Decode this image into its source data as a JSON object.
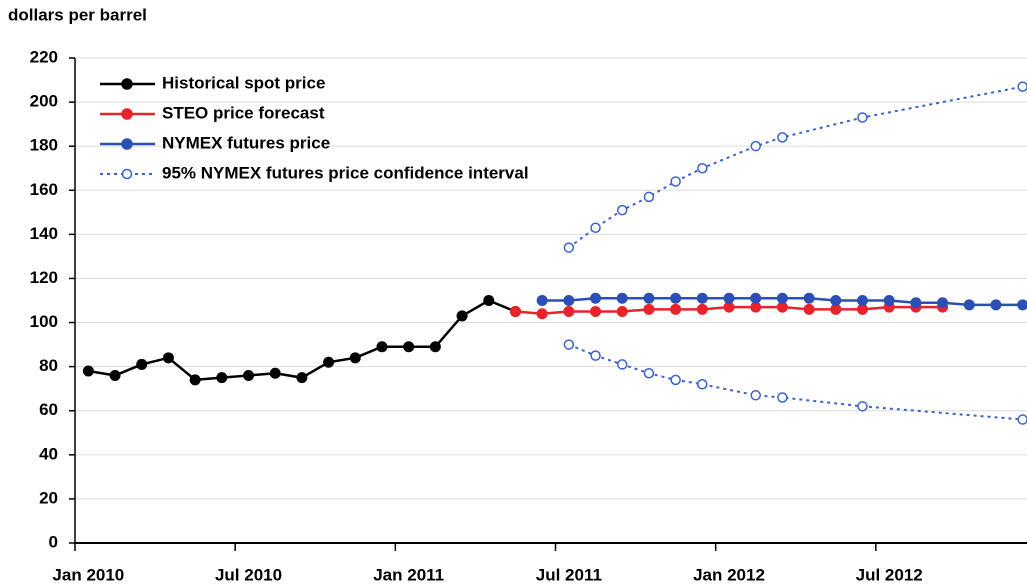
{
  "chart_data": {
    "type": "line",
    "ylabel": "dollars per barrel",
    "ylim": [
      0,
      220
    ],
    "yticks": [
      0,
      20,
      40,
      60,
      80,
      100,
      120,
      140,
      160,
      180,
      200,
      220
    ],
    "grid": true,
    "xlim": [
      "2010-01",
      "2013-01"
    ],
    "xticks": [
      {
        "value": "2010-01",
        "label": "Jan 2010"
      },
      {
        "value": "2010-07",
        "label": "Jul 2010"
      },
      {
        "value": "2011-01",
        "label": "Jan 2011"
      },
      {
        "value": "2011-07",
        "label": "Jul 2011"
      },
      {
        "value": "2012-01",
        "label": "Jan 2012"
      },
      {
        "value": "2012-07",
        "label": "Jul 2012"
      }
    ],
    "legend": "upper left",
    "series": [
      {
        "name": "Historical spot price",
        "color": "#000000",
        "x": [
          "2010-01",
          "2010-02",
          "2010-03",
          "2010-04",
          "2010-05",
          "2010-06",
          "2010-07",
          "2010-08",
          "2010-09",
          "2010-10",
          "2010-11",
          "2010-12",
          "2011-01",
          "2011-02",
          "2011-03",
          "2011-04",
          "2011-05"
        ],
        "values": [
          78,
          76,
          81,
          84,
          74,
          75,
          76,
          77,
          75,
          82,
          84,
          89,
          89,
          89,
          103,
          110,
          105
        ]
      },
      {
        "name": "STEO price forecast",
        "color": "#e8232a",
        "x": [
          "2011-05",
          "2011-06",
          "2011-07",
          "2011-08",
          "2011-09",
          "2011-10",
          "2011-11",
          "2011-12",
          "2012-01",
          "2012-02",
          "2012-03",
          "2012-04",
          "2012-05",
          "2012-06",
          "2012-07",
          "2012-08",
          "2012-09"
        ],
        "values": [
          105,
          104,
          105,
          105,
          105,
          106,
          106,
          106,
          107,
          107,
          107,
          106,
          106,
          106,
          107,
          107,
          107
        ]
      },
      {
        "name": "NYMEX futures price",
        "color": "#2a4fb5",
        "x": [
          "2011-06",
          "2011-07",
          "2011-08",
          "2011-09",
          "2011-10",
          "2011-11",
          "2011-12",
          "2012-01",
          "2012-02",
          "2012-03",
          "2012-04",
          "2012-05",
          "2012-06",
          "2012-07",
          "2012-08",
          "2012-09",
          "2012-10",
          "2012-11",
          "2012-12"
        ],
        "values": [
          110,
          110,
          111,
          111,
          111,
          111,
          111,
          111,
          111,
          111,
          111,
          110,
          110,
          110,
          109,
          109,
          108,
          108,
          108
        ]
      },
      {
        "name": "95% NYMEX futures price confidence interval",
        "color": "#3a62c9",
        "dashed": true,
        "open_markers": true,
        "x": [
          "2011-07",
          "2011-08",
          "2011-09",
          "2011-10",
          "2011-11",
          "2011-12",
          "2012-02",
          "2012-03",
          "2012-06",
          "2012-12"
        ],
        "values": [
          134,
          143,
          151,
          157,
          164,
          170,
          180,
          184,
          193,
          207
        ]
      },
      {
        "color": "#3a62c9",
        "dashed": true,
        "open_markers": true,
        "x": [
          "2011-07",
          "2011-08",
          "2011-09",
          "2011-10",
          "2011-11",
          "2011-12",
          "2012-02",
          "2012-03",
          "2012-06",
          "2012-12"
        ],
        "values": [
          90,
          85,
          81,
          77,
          74,
          72,
          67,
          66,
          62,
          56
        ]
      }
    ]
  }
}
